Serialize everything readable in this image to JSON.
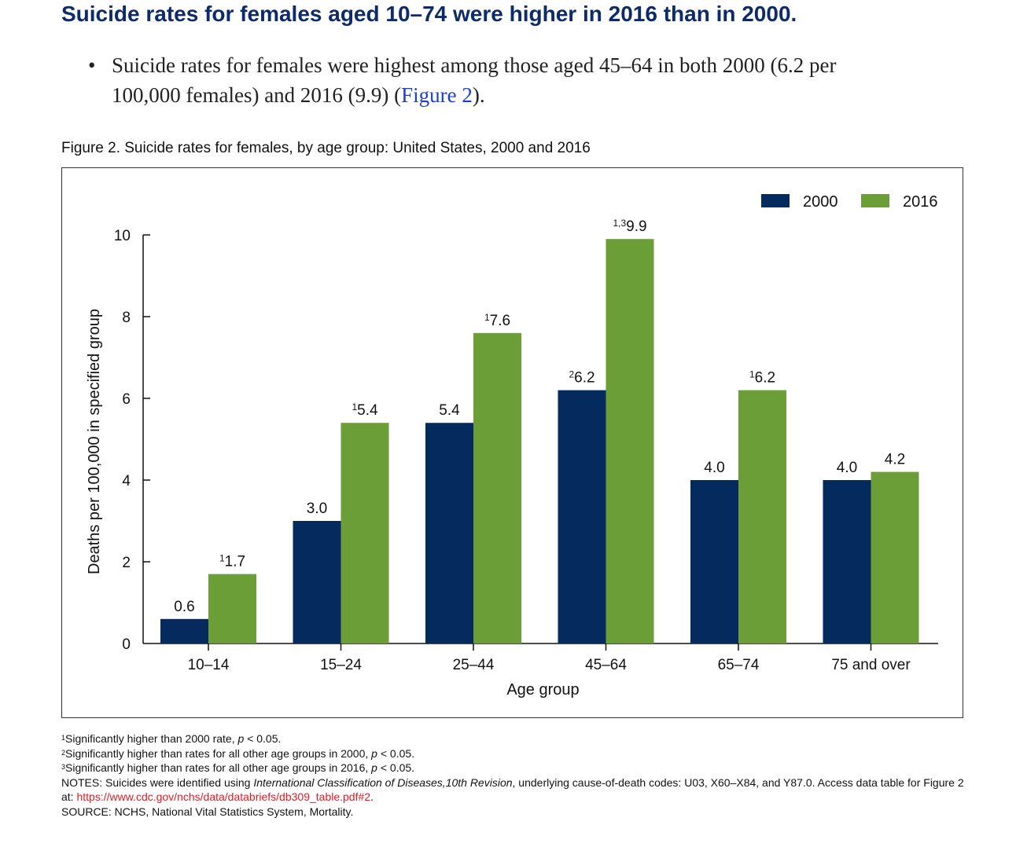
{
  "heading": "Suicide rates for females aged 10–74 were higher in 2016 than in 2000.",
  "bullet": {
    "symbol": "•",
    "text_before": "Suicide rates for females were highest among those aged 45–64 in both 2000 (6.2 per 100,000 females) and 2016 (9.9) (",
    "link_text": "Figure 2",
    "text_after": ")."
  },
  "figure_title": "Figure 2. Suicide rates for females, by age group: United States, 2000 and 2016",
  "colors": {
    "series_2000": "#052a5e",
    "series_2016": "#6b9e37",
    "heading": "#0d2b6b",
    "link": "#1a3fd6",
    "url": "#e31b23"
  },
  "chart_data": {
    "type": "bar",
    "xlabel": "Age group",
    "ylabel": "Deaths per 100,000 in specified group",
    "ylim": [
      0,
      10
    ],
    "yticks": [
      0,
      2,
      4,
      6,
      8,
      10
    ],
    "grid": false,
    "legend_position": "top-right",
    "categories": [
      "10–14",
      "15–24",
      "25–44",
      "45–64",
      "65–74",
      "75 and over"
    ],
    "series": [
      {
        "name": "2000",
        "values": [
          0.6,
          3.0,
          5.4,
          6.2,
          4.0,
          4.0
        ],
        "labels": [
          "0.6",
          "3.0",
          "5.4",
          "6.2",
          "4.0",
          "4.0"
        ],
        "label_sups": [
          "",
          "",
          "",
          "2",
          "",
          ""
        ]
      },
      {
        "name": "2016",
        "values": [
          1.7,
          5.4,
          7.6,
          9.9,
          6.2,
          4.2
        ],
        "labels": [
          "1.7",
          "5.4",
          "7.6",
          "9.9",
          "6.2",
          "4.2"
        ],
        "label_sups": [
          "1",
          "1",
          "1",
          "1,3",
          "1",
          ""
        ]
      }
    ]
  },
  "footnotes": {
    "note1_sup": "1",
    "note1_before": "Significantly higher than 2000 rate, ",
    "note1_p": "p",
    "note1_after": " < 0.05.",
    "note2_sup": "2",
    "note2_before": "Significantly higher than rates for all other age groups in 2000, ",
    "note2_p": "p",
    "note2_after": " < 0.05.",
    "note3_sup": "3",
    "note3_before": "Significantly higher than rates for all other age groups in 2016, ",
    "note3_p": "p",
    "note3_after": " < 0.05.",
    "notes_before": "NOTES: Suicides were identified using ",
    "notes_italic": "International Classification of Diseases,10th Revision",
    "notes_after": ", underlying cause-of-death codes: U03, X60–X84, and Y87.0. Access data table for Figure 2 at: ",
    "notes_url": "https://www.cdc.gov/nchs/data/databriefs/db309_table.pdf#2",
    "notes_end": ".",
    "source": "SOURCE: NCHS, National Vital Statistics System, Mortality."
  }
}
